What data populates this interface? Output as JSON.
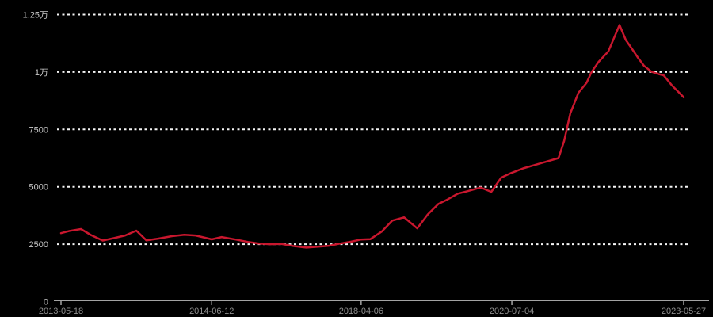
{
  "page": {
    "background_color": "#000000"
  },
  "chart_data": {
    "type": "line",
    "title": "",
    "legend": [],
    "grid": "horizontal-dotted",
    "colors": {
      "line": "#c9172e",
      "gridline": "#f5f5f5",
      "axis_line": "#a3a3a3",
      "y_tick_label": "#c9c9c9",
      "x_tick_label": "#8f8f8f",
      "background": "#000000"
    },
    "y_axis": {
      "min": 0,
      "max": 12500,
      "ticks": [
        {
          "label": "0",
          "value": 0
        },
        {
          "label": "2500",
          "value": 2500
        },
        {
          "label": "5000",
          "value": 5000
        },
        {
          "label": "7500",
          "value": 7500
        },
        {
          "label": "1万",
          "value": 10000
        },
        {
          "label": "1.25万",
          "value": 12500
        }
      ]
    },
    "x_axis": {
      "ticks": [
        {
          "label": "2013-05-18",
          "pos": 0.0
        },
        {
          "label": "2014-06-12",
          "pos": 0.242
        },
        {
          "label": "2018-04-06",
          "pos": 0.482
        },
        {
          "label": "2020-07-04",
          "pos": 0.724
        },
        {
          "label": "2023-05-27",
          "pos": 1.0
        }
      ]
    },
    "series": [
      {
        "name": "value",
        "points": [
          [
            0.0,
            2980
          ],
          [
            0.014,
            3080
          ],
          [
            0.032,
            3160
          ],
          [
            0.048,
            2900
          ],
          [
            0.067,
            2660
          ],
          [
            0.084,
            2760
          ],
          [
            0.103,
            2880
          ],
          [
            0.121,
            3090
          ],
          [
            0.137,
            2670
          ],
          [
            0.156,
            2740
          ],
          [
            0.178,
            2850
          ],
          [
            0.198,
            2910
          ],
          [
            0.216,
            2880
          ],
          [
            0.242,
            2710
          ],
          [
            0.258,
            2810
          ],
          [
            0.281,
            2700
          ],
          [
            0.3,
            2600
          ],
          [
            0.318,
            2530
          ],
          [
            0.335,
            2500
          ],
          [
            0.354,
            2510
          ],
          [
            0.373,
            2420
          ],
          [
            0.394,
            2350
          ],
          [
            0.413,
            2390
          ],
          [
            0.43,
            2430
          ],
          [
            0.449,
            2530
          ],
          [
            0.466,
            2610
          ],
          [
            0.481,
            2700
          ],
          [
            0.497,
            2720
          ],
          [
            0.515,
            3050
          ],
          [
            0.532,
            3530
          ],
          [
            0.551,
            3670
          ],
          [
            0.572,
            3190
          ],
          [
            0.589,
            3800
          ],
          [
            0.606,
            4250
          ],
          [
            0.621,
            4450
          ],
          [
            0.637,
            4700
          ],
          [
            0.653,
            4810
          ],
          [
            0.674,
            4970
          ],
          [
            0.691,
            4780
          ],
          [
            0.707,
            5400
          ],
          [
            0.723,
            5600
          ],
          [
            0.742,
            5800
          ],
          [
            0.761,
            5950
          ],
          [
            0.78,
            6100
          ],
          [
            0.799,
            6250
          ],
          [
            0.808,
            7000
          ],
          [
            0.818,
            8200
          ],
          [
            0.831,
            9100
          ],
          [
            0.844,
            9530
          ],
          [
            0.852,
            10000
          ],
          [
            0.863,
            10430
          ],
          [
            0.879,
            10900
          ],
          [
            0.897,
            12050
          ],
          [
            0.907,
            11400
          ],
          [
            0.916,
            11050
          ],
          [
            0.926,
            10650
          ],
          [
            0.936,
            10280
          ],
          [
            0.948,
            10020
          ],
          [
            0.958,
            9920
          ],
          [
            0.968,
            9850
          ],
          [
            0.981,
            9420
          ],
          [
            0.991,
            9150
          ],
          [
            1.0,
            8900
          ]
        ]
      }
    ]
  }
}
